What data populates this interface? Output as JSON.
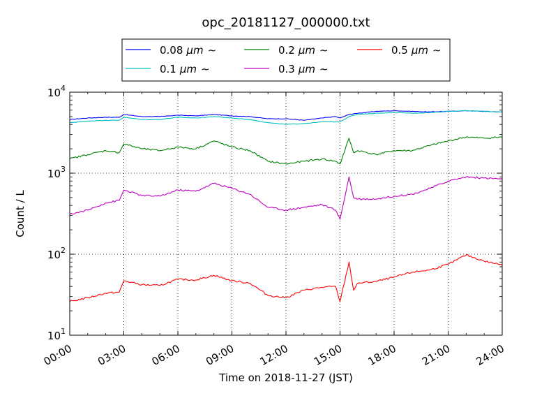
{
  "chart_data": {
    "type": "line",
    "title": "opc_20181127_000000.txt",
    "xlabel": "Time on 2018-11-27 (JST)",
    "ylabel": "Count / L",
    "y_scale": "log",
    "ylim": [
      10,
      10000
    ],
    "xlim": [
      "00:00",
      "24:00"
    ],
    "x_ticks": [
      "00:00",
      "03:00",
      "06:00",
      "09:00",
      "12:00",
      "15:00",
      "18:00",
      "21:00",
      "24:00"
    ],
    "y_ticks": [
      {
        "value": 10,
        "base": "10",
        "exp": "1"
      },
      {
        "value": 100,
        "base": "10",
        "exp": "2"
      },
      {
        "value": 1000,
        "base": "10",
        "exp": "3"
      },
      {
        "value": 10000,
        "base": "10",
        "exp": "4"
      }
    ],
    "grid": true,
    "legend_position": "top",
    "x": [
      "00:00",
      "01:00",
      "02:00",
      "02:45",
      "03:00",
      "04:00",
      "05:00",
      "06:00",
      "07:00",
      "08:00",
      "09:00",
      "10:00",
      "11:00",
      "12:00",
      "13:00",
      "14:00",
      "14:45",
      "15:00",
      "15:30",
      "15:45",
      "16:00",
      "17:00",
      "18:00",
      "19:00",
      "20:00",
      "21:00",
      "22:00",
      "23:00",
      "24:00"
    ],
    "series": [
      {
        "name": "0.08 μm ∼",
        "label_main": "0.08",
        "unit": "μm",
        "tail": "∼",
        "color": "#0000ff",
        "values": [
          4600,
          4800,
          4900,
          4900,
          5300,
          5000,
          5000,
          5200,
          5100,
          5300,
          5100,
          5000,
          4700,
          4700,
          4500,
          4800,
          5000,
          4800,
          5300,
          5400,
          5500,
          5800,
          5900,
          5800,
          5700,
          5800,
          5900,
          5800,
          5700
        ]
      },
      {
        "name": "0.1 μm ∼",
        "label_main": "0.1",
        "unit": "μm",
        "tail": "∼",
        "color": "#00bfbf",
        "values": [
          4200,
          4400,
          4500,
          4500,
          4900,
          4600,
          4600,
          4900,
          4800,
          5000,
          4800,
          4600,
          4200,
          4000,
          4100,
          4300,
          4300,
          4300,
          5000,
          5200,
          5300,
          5500,
          5600,
          5500,
          5600,
          5800,
          5900,
          5800,
          5700
        ]
      },
      {
        "name": "0.2 μm ∼",
        "label_main": "0.2",
        "unit": "μm",
        "tail": "∼",
        "color": "#008000",
        "values": [
          1500,
          1700,
          1900,
          1800,
          2300,
          2000,
          1900,
          2100,
          2000,
          2500,
          2100,
          1900,
          1400,
          1300,
          1400,
          1500,
          1400,
          1300,
          2700,
          1800,
          1900,
          1700,
          1900,
          1900,
          2200,
          2500,
          2800,
          2700,
          2800
        ]
      },
      {
        "name": "0.3 μm ∼",
        "label_main": "0.3",
        "unit": "μm",
        "tail": "∼",
        "color": "#bf00bf",
        "values": [
          310,
          350,
          430,
          460,
          620,
          530,
          520,
          620,
          600,
          750,
          650,
          550,
          380,
          350,
          380,
          410,
          350,
          270,
          900,
          500,
          480,
          480,
          520,
          550,
          650,
          800,
          900,
          870,
          850
        ]
      },
      {
        "name": "0.5 μm ∼",
        "label_main": "0.5",
        "unit": "μm",
        "tail": "∼",
        "color": "#ff0000",
        "values": [
          26,
          29,
          33,
          34,
          47,
          42,
          41,
          49,
          48,
          55,
          47,
          44,
          31,
          29,
          36,
          39,
          40,
          26,
          80,
          36,
          44,
          46,
          52,
          60,
          64,
          75,
          98,
          82,
          74
        ]
      }
    ]
  }
}
